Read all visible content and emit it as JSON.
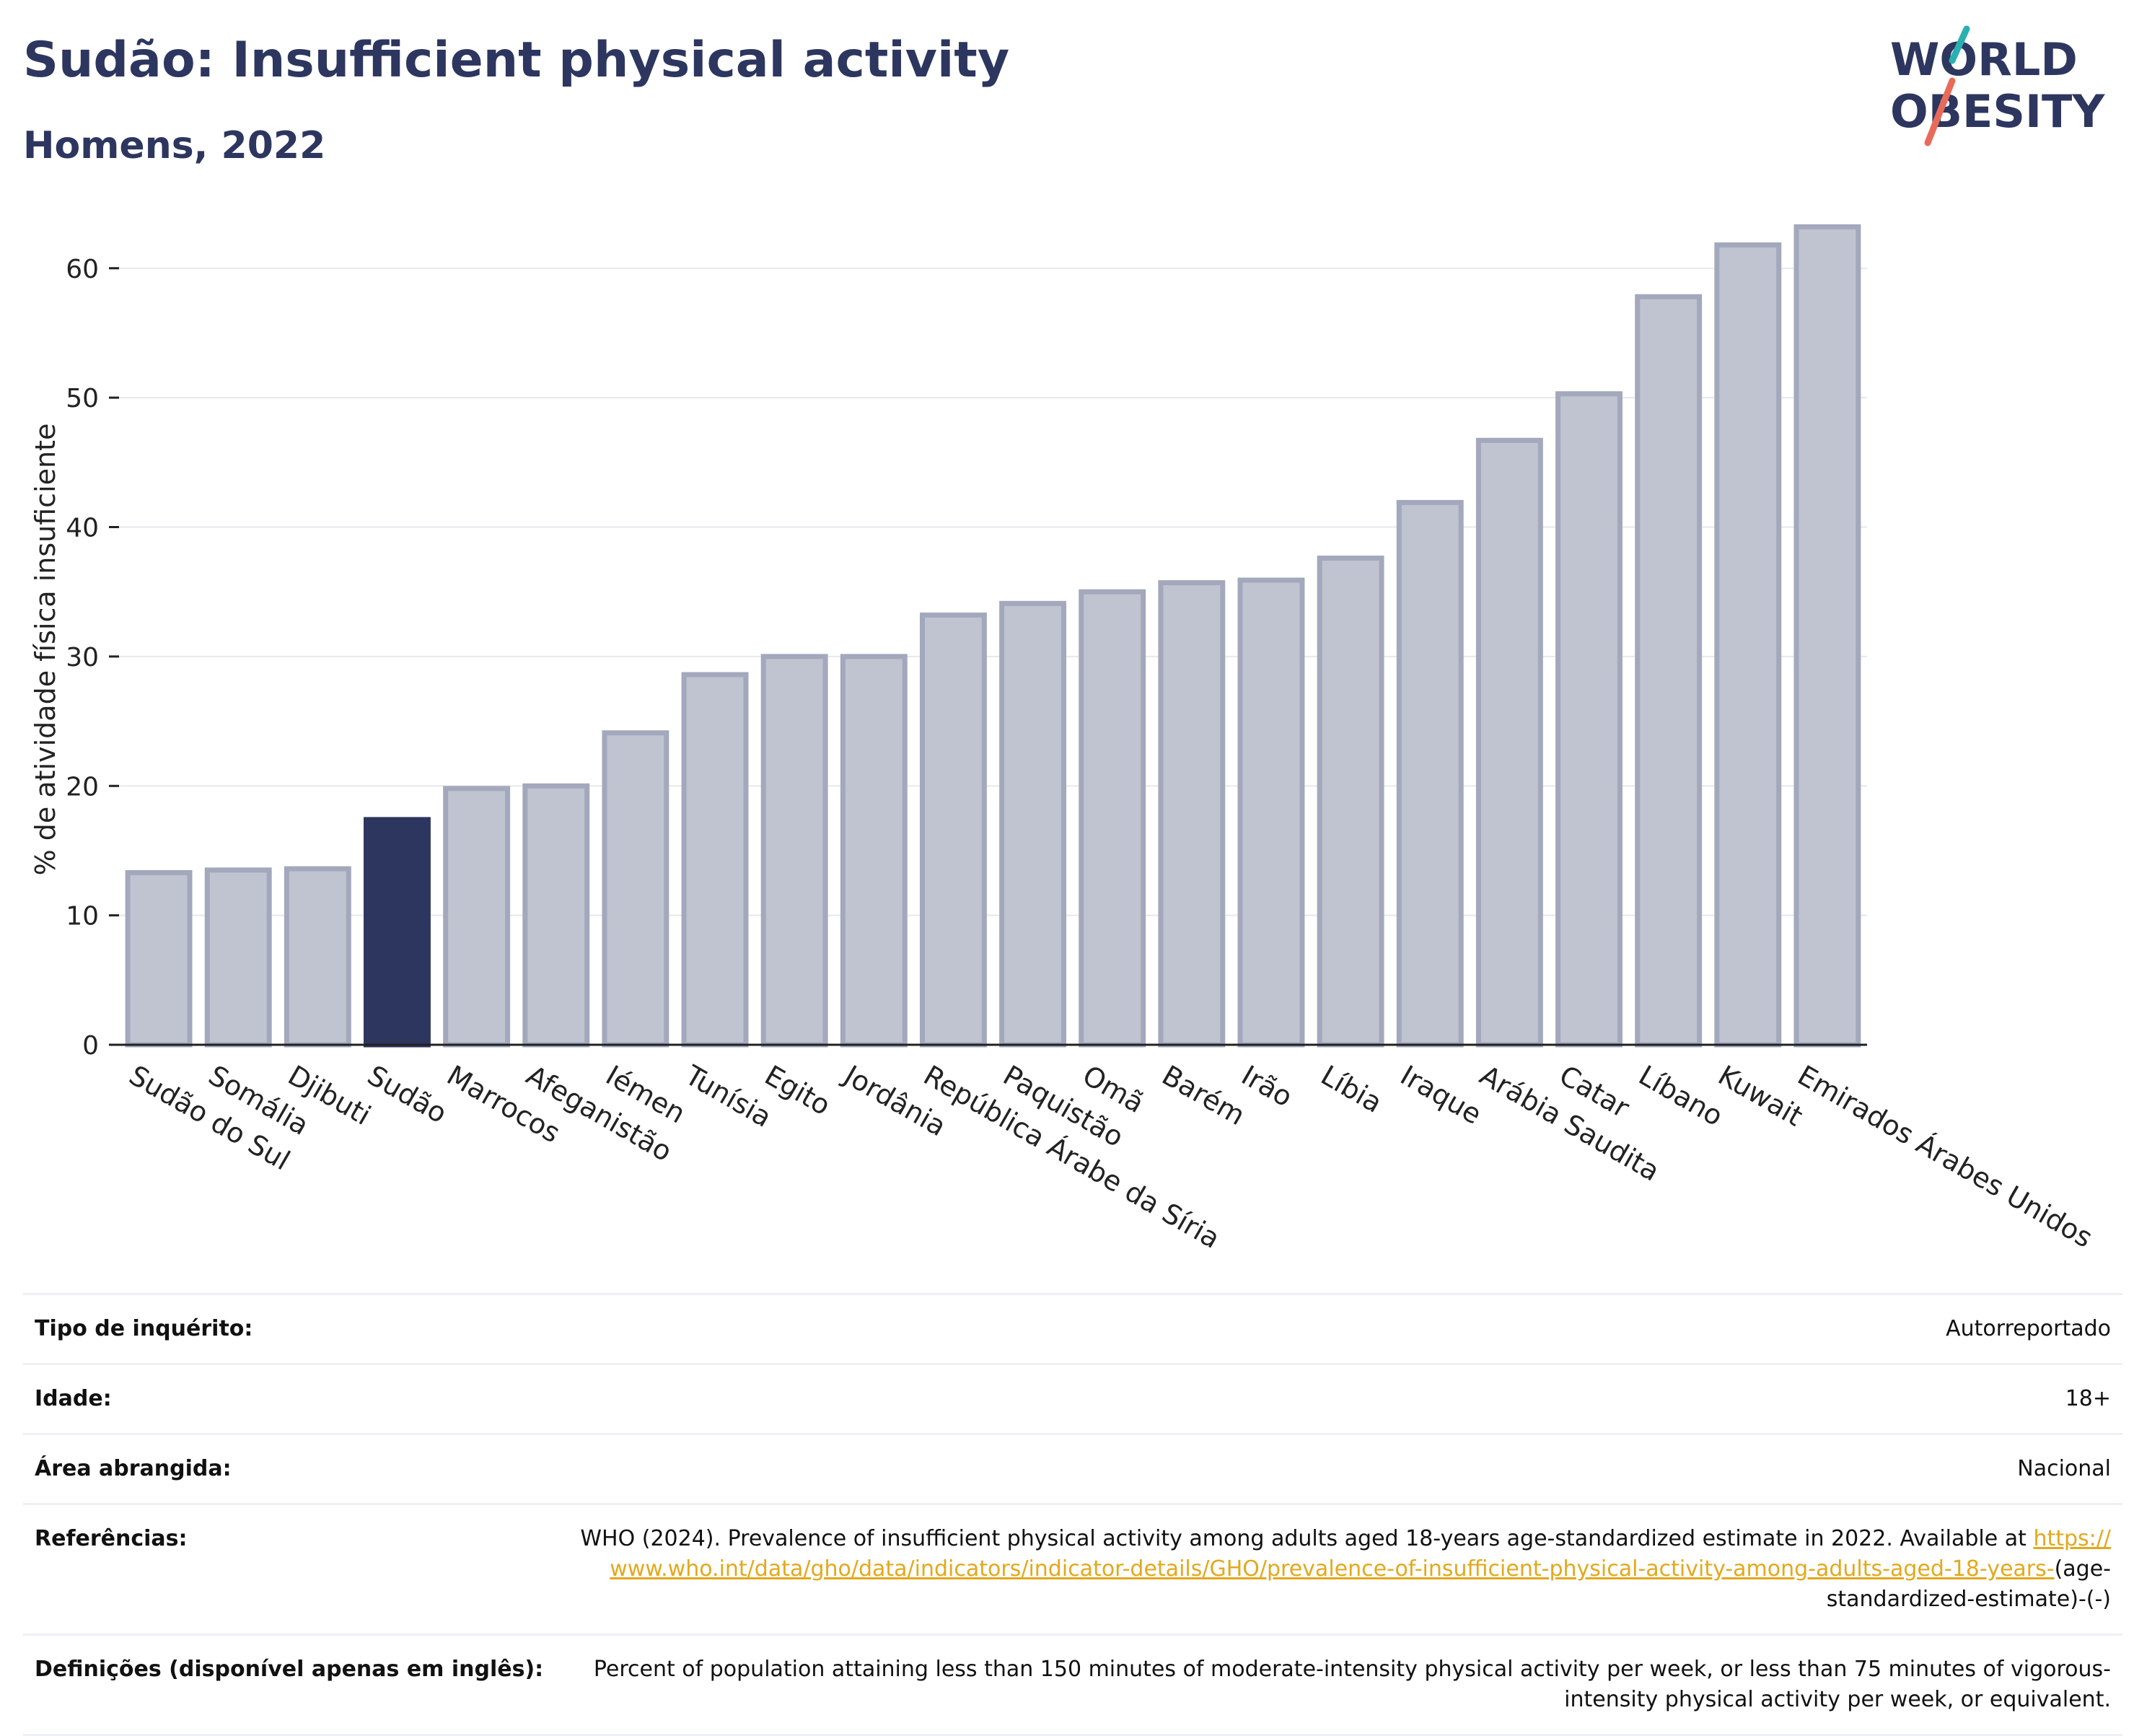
{
  "header": {
    "title": "Sudão: Insufficient physical activity",
    "subtitle": "Homens, 2022"
  },
  "logo": {
    "line1": "WORLD",
    "line2": "OBESITY"
  },
  "colors": {
    "brand": "#2d365f",
    "bar_muted": "#c0c3d0",
    "bar_muted_stroke": "#a3a8bc",
    "highlight": "#2d365f",
    "link": "#e3a81d",
    "logo_slash_teal": "#2ab0b0",
    "logo_slash_coral": "#ea6a5a"
  },
  "chart_data": {
    "type": "bar",
    "title": "Sudão: Insufficient physical activity",
    "subtitle": "Homens, 2022",
    "ylabel": "% de atividade física insuficiente",
    "xlabel": "",
    "ylim": [
      0,
      64
    ],
    "yticks": [
      0,
      10,
      20,
      30,
      40,
      50,
      60
    ],
    "grid": true,
    "highlight": "Sudão",
    "categories": [
      "Sudão do Sul",
      "Somália",
      "Djibuti",
      "Sudão",
      "Marrocos",
      "Afeganistão",
      "Iémen",
      "Tunísia",
      "Egito",
      "Jordânia",
      "República Árabe da Síria",
      "Paquistão",
      "Omã",
      "Barém",
      "Irão",
      "Líbia",
      "Iraque",
      "Arábia Saudita",
      "Catar",
      "Líbano",
      "Kuwait",
      "Emirados Árabes Unidos"
    ],
    "values": [
      13.3,
      13.5,
      13.6,
      17.4,
      19.8,
      20.0,
      24.1,
      28.6,
      30.0,
      30.0,
      33.2,
      34.1,
      35.0,
      35.7,
      35.9,
      37.6,
      41.9,
      46.7,
      50.3,
      57.8,
      61.8,
      63.2
    ]
  },
  "info": {
    "survey_type": {
      "label": "Tipo de inquérito:",
      "value": "Autorreportado"
    },
    "age": {
      "label": "Idade:",
      "value": "18+"
    },
    "area": {
      "label": "Área abrangida:",
      "value": "Nacional"
    },
    "references": {
      "label": "Referências:",
      "text": "WHO (2024). Prevalence of insufficient physical activity among adults aged 18-years age-standardized estimate in 2022. Available at",
      "link": "https://www.who.int/data/gho/data/indicators/indicator-details/GHO/prevalence-of-insufficient-physical-activity-among-adults-aged-18-years-",
      "suffix": "(age-standardized-estimate)-(-)"
    },
    "definitions": {
      "label": "Definições (disponível apenas em inglês):",
      "value": "Percent of population attaining less than 150 minutes of moderate-intensity physical activity per week, or less than 75 minutes of vigorous-intensity physical activity per week, or equivalent."
    }
  }
}
